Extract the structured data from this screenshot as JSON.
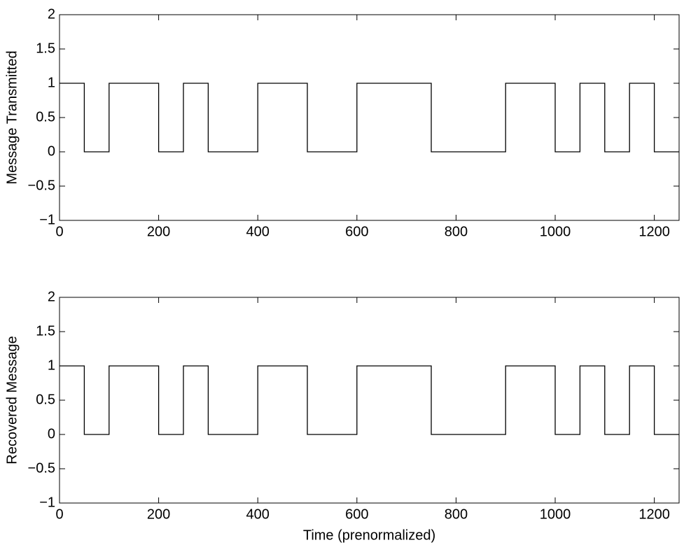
{
  "chart_data": [
    {
      "type": "line",
      "ylabel": "Message Transmitted",
      "x": [
        0,
        50,
        50,
        100,
        100,
        200,
        200,
        250,
        250,
        300,
        300,
        400,
        400,
        500,
        500,
        600,
        600,
        750,
        750,
        900,
        900,
        1000,
        1000,
        1050,
        1050,
        1100,
        1100,
        1150,
        1150,
        1200,
        1200,
        1250
      ],
      "values": [
        1,
        1,
        0,
        0,
        1,
        1,
        0,
        0,
        1,
        1,
        0,
        0,
        1,
        1,
        0,
        0,
        1,
        1,
        0,
        0,
        1,
        1,
        0,
        0,
        1,
        1,
        0,
        0,
        1,
        1,
        0,
        0
      ],
      "color": "#000000",
      "xlim": [
        0,
        1250
      ],
      "xticks": [
        0,
        200,
        400,
        600,
        800,
        1000,
        1200
      ],
      "ylim": [
        -1,
        2
      ],
      "yticks": [
        {
          "value": -1,
          "label": "−1"
        },
        {
          "value": -0.5,
          "label": "−0.5"
        },
        0,
        0.5,
        1,
        1.5,
        2
      ]
    },
    {
      "type": "line",
      "ylabel": "Recovered Message",
      "xlabel": "Time (prenormalized)",
      "x": [
        0,
        50,
        50,
        100,
        100,
        200,
        200,
        250,
        250,
        300,
        300,
        400,
        400,
        500,
        500,
        600,
        600,
        750,
        750,
        900,
        900,
        1000,
        1000,
        1050,
        1050,
        1100,
        1100,
        1150,
        1150,
        1200,
        1200,
        1250
      ],
      "values": [
        1,
        1,
        0,
        0,
        1,
        1,
        0,
        0,
        1,
        1,
        0,
        0,
        1,
        1,
        0,
        0,
        1,
        1,
        0,
        0,
        1,
        1,
        0,
        0,
        1,
        1,
        0,
        0,
        1,
        1,
        0,
        0
      ],
      "color": "#000000",
      "xlim": [
        0,
        1250
      ],
      "xticks": [
        0,
        200,
        400,
        600,
        800,
        1000,
        1200
      ],
      "ylim": [
        -1,
        2
      ],
      "yticks": [
        {
          "value": -1,
          "label": "−1"
        },
        {
          "value": -0.5,
          "label": "−0.5"
        },
        0,
        0.5,
        1,
        1.5,
        2
      ]
    }
  ]
}
